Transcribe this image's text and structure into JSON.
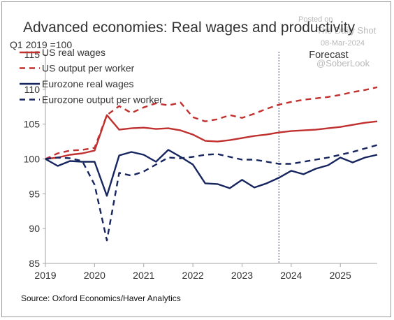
{
  "watermark": {
    "posted_on": "Posted on",
    "site": "The Daily Shot",
    "date": "08-Mar-2024",
    "handle": "@SoberLook"
  },
  "source": "Source: Oxford Economics/Haver Analytics",
  "chart_data": {
    "type": "line",
    "title": "Advanced economies: Real wages and productivity",
    "subtitle": "Q1 2019 =100",
    "xlabel": "",
    "ylabel": "",
    "ylim": [
      85,
      115
    ],
    "yticks": [
      85,
      90,
      95,
      100,
      105,
      110,
      115
    ],
    "xlim": [
      2019,
      2025.75
    ],
    "xticks": [
      2019,
      2020,
      2021,
      2022,
      2023,
      2024,
      2025
    ],
    "grid": false,
    "legend_position": "top-left",
    "forecast": {
      "label": "Forecast",
      "x": 2023.75
    },
    "colors": {
      "us": "#c0302e",
      "eurozone": "#16255f",
      "forecast_line": "#3a4a8c"
    },
    "series": [
      {
        "name": "US real wages",
        "color": "#c0302e",
        "dash": "solid",
        "x": [
          2019.0,
          2019.25,
          2019.5,
          2019.75,
          2020.0,
          2020.25,
          2020.5,
          2020.75,
          2021.0,
          2021.25,
          2021.5,
          2021.75,
          2022.0,
          2022.25,
          2022.5,
          2022.75,
          2023.0,
          2023.25,
          2023.5,
          2023.75,
          2024.0,
          2024.25,
          2024.5,
          2024.75,
          2025.0,
          2025.25,
          2025.5,
          2025.75
        ],
        "values": [
          100.0,
          100.2,
          100.6,
          100.8,
          101.2,
          106.3,
          104.2,
          104.4,
          104.5,
          104.3,
          104.4,
          104.1,
          103.5,
          102.6,
          102.5,
          102.7,
          103.0,
          103.3,
          103.5,
          103.8,
          104.0,
          104.1,
          104.2,
          104.4,
          104.6,
          104.9,
          105.2,
          105.4
        ]
      },
      {
        "name": "US output per worker",
        "color": "#c0302e",
        "dash": "dashed",
        "x": [
          2019.0,
          2019.25,
          2019.5,
          2019.75,
          2020.0,
          2020.25,
          2020.5,
          2020.75,
          2021.0,
          2021.25,
          2021.5,
          2021.75,
          2022.0,
          2022.25,
          2022.5,
          2022.75,
          2023.0,
          2023.25,
          2023.5,
          2023.75,
          2024.0,
          2024.25,
          2024.5,
          2024.75,
          2025.0,
          2025.25,
          2025.5,
          2025.75
        ],
        "values": [
          100.0,
          100.8,
          101.2,
          101.3,
          101.6,
          106.3,
          107.6,
          106.6,
          107.4,
          108.0,
          107.7,
          108.1,
          106.0,
          105.4,
          105.7,
          106.3,
          105.9,
          106.5,
          107.2,
          107.8,
          108.2,
          108.5,
          108.7,
          108.9,
          109.2,
          109.6,
          109.9,
          110.3
        ]
      },
      {
        "name": "Eurozone real wages",
        "color": "#16255f",
        "dash": "solid",
        "x": [
          2019.0,
          2019.25,
          2019.5,
          2019.75,
          2020.0,
          2020.25,
          2020.5,
          2020.75,
          2021.0,
          2021.25,
          2021.5,
          2021.75,
          2022.0,
          2022.25,
          2022.5,
          2022.75,
          2023.0,
          2023.25,
          2023.5,
          2023.75,
          2024.0,
          2024.25,
          2024.5,
          2024.75,
          2025.0,
          2025.25,
          2025.5,
          2025.75
        ],
        "values": [
          100.0,
          99.0,
          99.7,
          99.6,
          99.6,
          94.7,
          100.5,
          101.0,
          100.6,
          99.6,
          101.3,
          100.3,
          99.2,
          96.5,
          96.4,
          95.8,
          97.0,
          95.9,
          96.5,
          97.3,
          98.3,
          97.8,
          98.6,
          99.1,
          100.2,
          99.5,
          100.2,
          100.6
        ]
      },
      {
        "name": "Eurozone output per worker",
        "color": "#16255f",
        "dash": "dashed",
        "x": [
          2019.0,
          2019.25,
          2019.5,
          2019.75,
          2020.0,
          2020.25,
          2020.5,
          2020.75,
          2021.0,
          2021.25,
          2021.5,
          2021.75,
          2022.0,
          2022.25,
          2022.5,
          2022.75,
          2023.0,
          2023.25,
          2023.5,
          2023.75,
          2024.0,
          2024.25,
          2024.5,
          2024.75,
          2025.0,
          2025.25,
          2025.5,
          2025.75
        ],
        "values": [
          100.0,
          100.2,
          100.1,
          99.7,
          96.3,
          88.3,
          98.0,
          97.6,
          98.2,
          99.2,
          100.2,
          100.1,
          100.3,
          100.6,
          100.7,
          100.3,
          99.9,
          99.9,
          99.6,
          99.3,
          99.3,
          99.6,
          99.9,
          100.2,
          100.6,
          101.0,
          101.5,
          102.0
        ]
      }
    ]
  }
}
